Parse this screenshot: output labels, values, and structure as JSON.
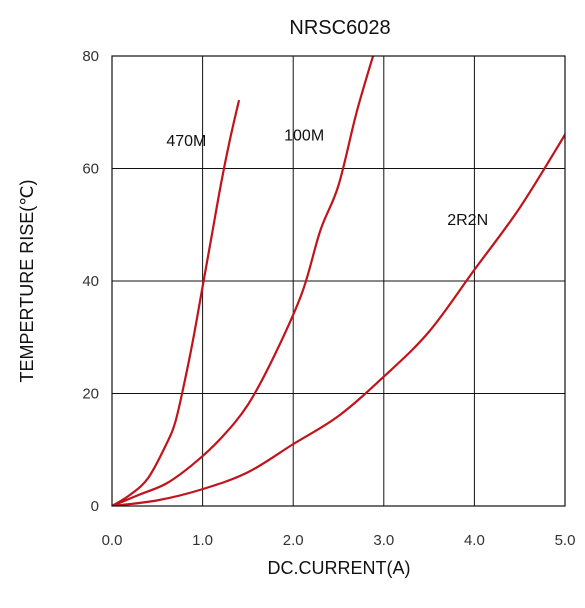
{
  "chart_data": {
    "type": "line",
    "title": "NRSC6028",
    "xlabel": "DC.CURRENT(A)",
    "ylabel": "TEMPERTURE RISE(℃)",
    "xlim": [
      0,
      5
    ],
    "ylim": [
      0,
      80
    ],
    "x_ticks": [
      "0.0",
      "1.0",
      "2.0",
      "3.0",
      "4.0",
      "5.0"
    ],
    "y_ticks": [
      "0",
      "20",
      "40",
      "60",
      "80"
    ],
    "grid": true,
    "series": [
      {
        "name": "470M",
        "color": "#c0141c",
        "points": [
          [
            0,
            0
          ],
          [
            0.2,
            2
          ],
          [
            0.4,
            5
          ],
          [
            0.6,
            11
          ],
          [
            0.7,
            15
          ],
          [
            0.8,
            22
          ],
          [
            0.9,
            30
          ],
          [
            1.0,
            39
          ],
          [
            1.1,
            48
          ],
          [
            1.2,
            57
          ],
          [
            1.3,
            65
          ],
          [
            1.4,
            72
          ]
        ]
      },
      {
        "name": "100M",
        "color": "#c0141c",
        "points": [
          [
            0,
            0
          ],
          [
            0.3,
            2
          ],
          [
            0.6,
            4
          ],
          [
            0.9,
            7.5
          ],
          [
            1.2,
            12
          ],
          [
            1.5,
            18
          ],
          [
            1.8,
            27
          ],
          [
            2.1,
            38
          ],
          [
            2.3,
            49
          ],
          [
            2.5,
            57
          ],
          [
            2.7,
            70
          ],
          [
            2.9,
            81
          ]
        ]
      },
      {
        "name": "2R2N",
        "color": "#c0141c",
        "points": [
          [
            0,
            0
          ],
          [
            0.5,
            1
          ],
          [
            1.0,
            3
          ],
          [
            1.5,
            6
          ],
          [
            2.0,
            11
          ],
          [
            2.5,
            16
          ],
          [
            3.0,
            23
          ],
          [
            3.5,
            31
          ],
          [
            4.0,
            42
          ],
          [
            4.5,
            53
          ],
          [
            5.0,
            66
          ]
        ]
      }
    ],
    "annotations": [
      {
        "text": "470M",
        "x": 0.6,
        "y": 64
      },
      {
        "text": "100M",
        "x": 1.9,
        "y": 65
      },
      {
        "text": "2R2N",
        "x": 3.7,
        "y": 50
      }
    ]
  }
}
